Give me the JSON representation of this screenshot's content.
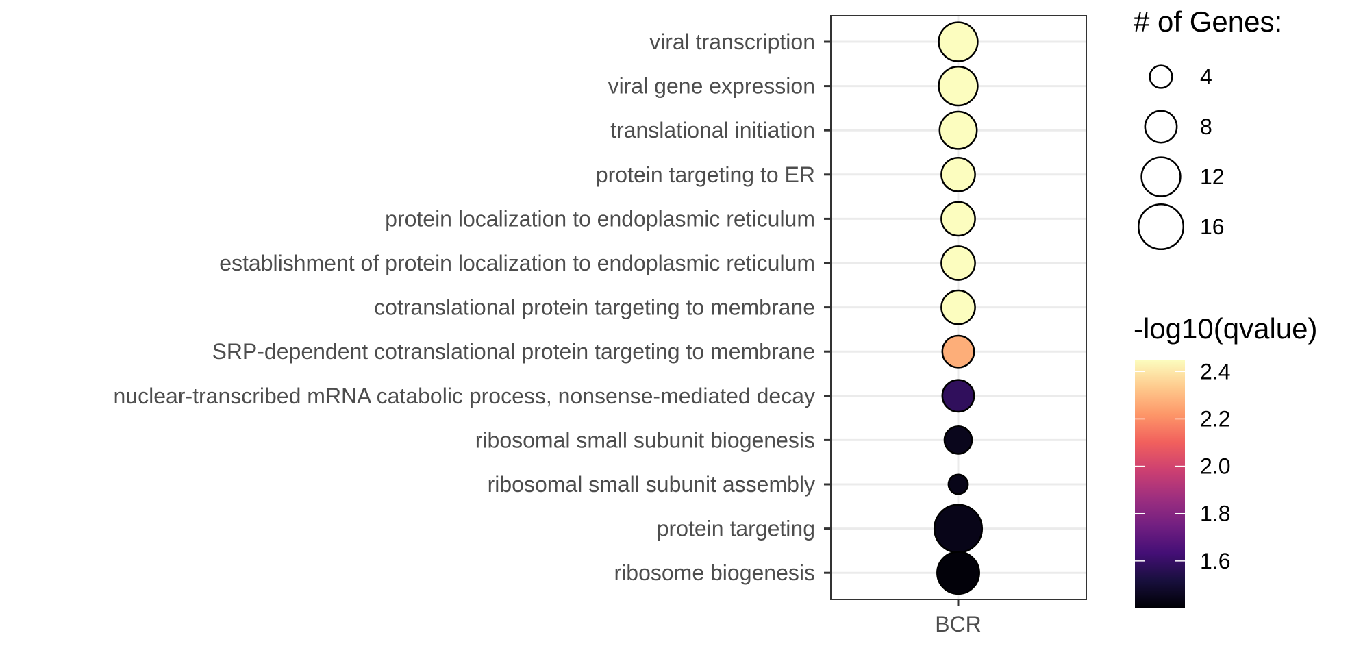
{
  "chart_data": {
    "type": "scatter",
    "subtype": "dot-plot",
    "x_categories": [
      "BCR"
    ],
    "y_categories": [
      "viral transcription",
      "viral gene expression",
      "translational initiation",
      "protein targeting to ER",
      "protein localization to endoplasmic reticulum",
      "establishment of protein localization to endoplasmic reticulum",
      "cotranslational protein targeting to membrane",
      "SRP-dependent cotranslational protein targeting to membrane",
      "nuclear-transcribed mRNA catabolic process, nonsense-mediated decay",
      "ribosomal small subunit biogenesis",
      "ribosomal small subunit assembly",
      "protein targeting",
      "ribosome biogenesis"
    ],
    "points": [
      {
        "x": "BCR",
        "y": "viral transcription",
        "genes": 12,
        "neg_log10_qvalue": 2.45
      },
      {
        "x": "BCR",
        "y": "viral gene expression",
        "genes": 12,
        "neg_log10_qvalue": 2.45
      },
      {
        "x": "BCR",
        "y": "translational initiation",
        "genes": 11,
        "neg_log10_qvalue": 2.45
      },
      {
        "x": "BCR",
        "y": "protein targeting to ER",
        "genes": 9,
        "neg_log10_qvalue": 2.45
      },
      {
        "x": "BCR",
        "y": "protein localization to endoplasmic reticulum",
        "genes": 9,
        "neg_log10_qvalue": 2.45
      },
      {
        "x": "BCR",
        "y": "establishment of protein localization to endoplasmic reticulum",
        "genes": 9,
        "neg_log10_qvalue": 2.45
      },
      {
        "x": "BCR",
        "y": "cotranslational protein targeting to membrane",
        "genes": 9,
        "neg_log10_qvalue": 2.45
      },
      {
        "x": "BCR",
        "y": "SRP-dependent cotranslational protein targeting to membrane",
        "genes": 8,
        "neg_log10_qvalue": 2.27
      },
      {
        "x": "BCR",
        "y": "nuclear-transcribed mRNA catabolic process, nonsense-mediated decay",
        "genes": 8,
        "neg_log10_qvalue": 1.58
      },
      {
        "x": "BCR",
        "y": "ribosomal small subunit biogenesis",
        "genes": 6,
        "neg_log10_qvalue": 1.45
      },
      {
        "x": "BCR",
        "y": "ribosomal small subunit assembly",
        "genes": 3,
        "neg_log10_qvalue": 1.44
      },
      {
        "x": "BCR",
        "y": "protein targeting",
        "genes": 18,
        "neg_log10_qvalue": 1.44
      },
      {
        "x": "BCR",
        "y": "ribosome biogenesis",
        "genes": 14,
        "neg_log10_qvalue": 1.41
      }
    ],
    "size_legend": {
      "title": "# of Genes:",
      "breaks": [
        4,
        8,
        12,
        16
      ],
      "labels": [
        "4",
        "8",
        "12",
        "16"
      ]
    },
    "color_legend": {
      "title": "-log10(qvalue)",
      "breaks": [
        1.6,
        1.8,
        2.0,
        2.2,
        2.4
      ],
      "labels": [
        "1.6",
        "1.8",
        "2.0",
        "2.2",
        "2.4"
      ],
      "range": [
        1.4,
        2.45
      ],
      "palette": "magma",
      "colors": [
        "#000004",
        "#180f3d",
        "#440f76",
        "#721f81",
        "#9e2f7f",
        "#cd4071",
        "#f1605d",
        "#fd9668",
        "#feca8d",
        "#fcfdbf"
      ]
    },
    "grid": true
  }
}
